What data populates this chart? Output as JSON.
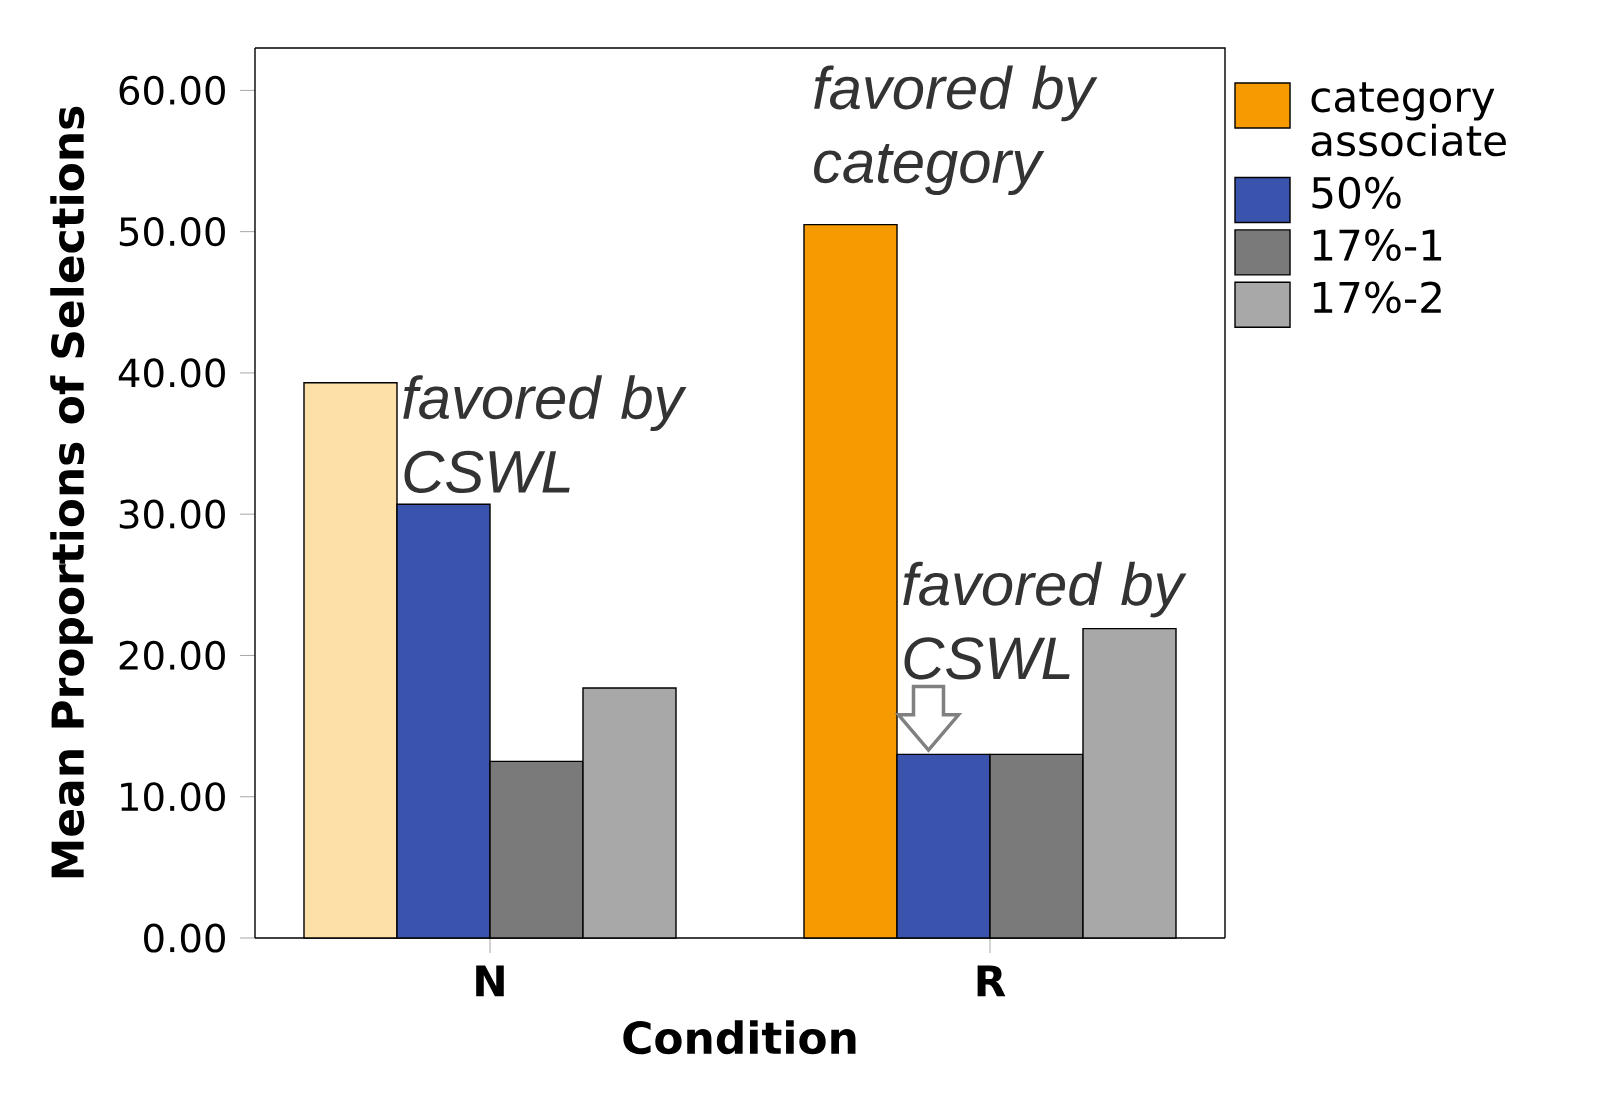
{
  "chart_data": {
    "type": "bar",
    "xlabel": "Condition",
    "ylabel": "Mean Proportions of Selections",
    "categories": [
      "N",
      "R"
    ],
    "series": [
      {
        "name": "category associate",
        "color": "#f59a00",
        "colors": [
          "#fde0a8",
          "#f59a00"
        ],
        "values": [
          39.3,
          50.5
        ]
      },
      {
        "name": "50%",
        "color": "#3a53ad",
        "values": [
          30.7,
          13.0
        ]
      },
      {
        "name": "17%-1",
        "color": "#7a7a7a",
        "values": [
          12.5,
          13.0
        ]
      },
      {
        "name": "17%-2",
        "color": "#a8a8a8",
        "values": [
          17.7,
          21.9
        ]
      }
    ],
    "ylim": [
      0,
      63
    ],
    "yticks": [
      {
        "value": 0,
        "label": "0.00"
      },
      {
        "value": 10,
        "label": "10.00"
      },
      {
        "value": 20,
        "label": "20.00"
      },
      {
        "value": 30,
        "label": "30.00"
      },
      {
        "value": 40,
        "label": "40.00"
      },
      {
        "value": 50,
        "label": "50.00"
      },
      {
        "value": 60,
        "label": "60.00"
      }
    ],
    "legend": "right",
    "annotations": [
      "favored by category",
      {
        "text": "favored by CSWL",
        "x": "N",
        "y": 30.7
      },
      {
        "text": "favored by CSWL",
        "x": "R",
        "y": 13.0
      }
    ]
  }
}
